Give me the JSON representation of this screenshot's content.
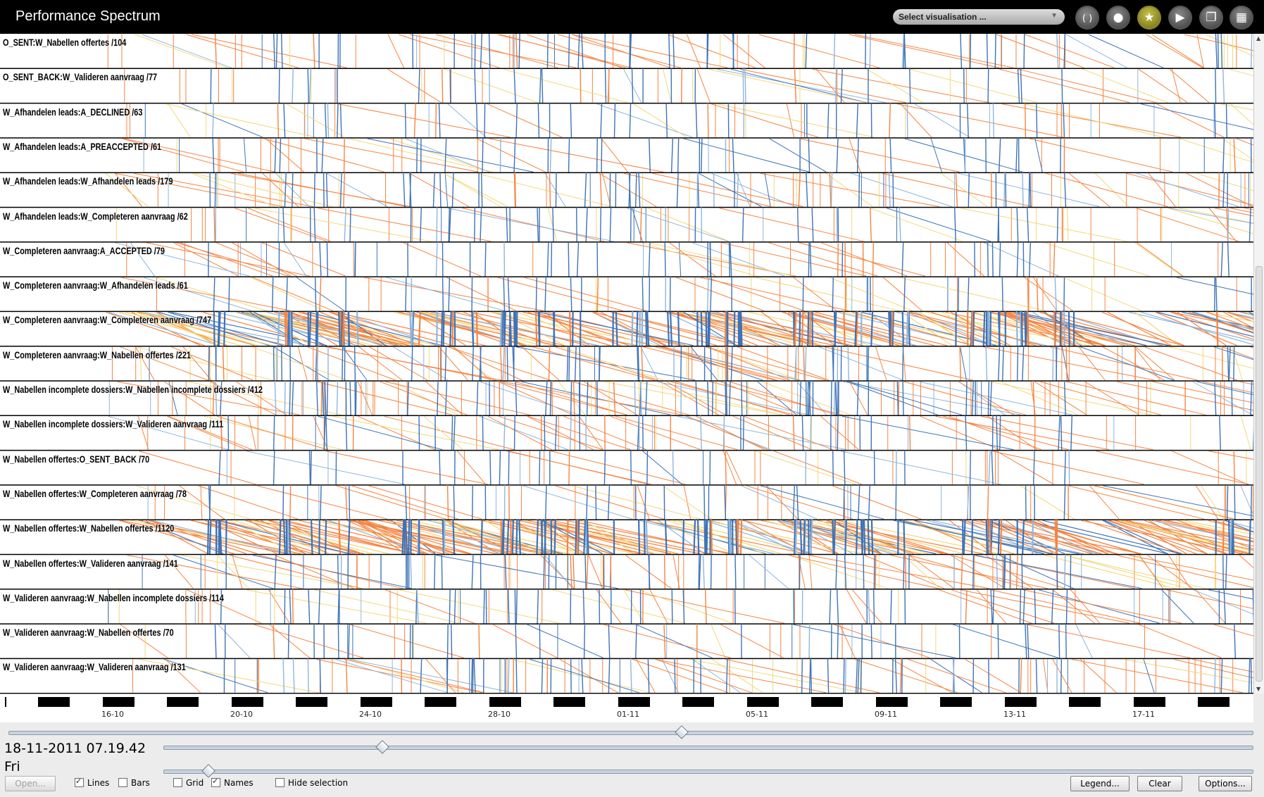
{
  "window": {
    "title": "Performance Spectrum"
  },
  "toolbar": {
    "select_visualisation": "Select visualisation ...",
    "buttons": [
      {
        "name": "refresh-icon",
        "glyph": "( )"
      },
      {
        "name": "drop-icon",
        "glyph": "●"
      },
      {
        "name": "star-icon",
        "glyph": "★"
      },
      {
        "name": "play-icon",
        "glyph": "▶"
      },
      {
        "name": "copy-icon",
        "glyph": "❐"
      },
      {
        "name": "grid-icon",
        "glyph": "▦"
      }
    ]
  },
  "segments": [
    {
      "label": "O_SENT:W_Nabellen offertes /104",
      "density": 0.25
    },
    {
      "label": "O_SENT_BACK:W_Valideren aanvraag /77",
      "density": 0.15
    },
    {
      "label": "W_Afhandelen leads:A_DECLINED /63",
      "density": 0.15
    },
    {
      "label": "W_Afhandelen leads:A_PREACCEPTED /61",
      "density": 0.15
    },
    {
      "label": "W_Afhandelen leads:W_Afhandelen leads /179",
      "density": 0.35
    },
    {
      "label": "W_Afhandelen leads:W_Completeren aanvraag /62",
      "density": 0.2
    },
    {
      "label": "W_Completeren aanvraag:A_ACCEPTED /79",
      "density": 0.2
    },
    {
      "label": "W_Completeren aanvraag:W_Afhandelen leads /61",
      "density": 0.15
    },
    {
      "label": "W_Completeren aanvraag:W_Completeren aanvraag /747",
      "density": 1.0
    },
    {
      "label": "W_Completeren aanvraag:W_Nabellen offertes /221",
      "density": 0.5
    },
    {
      "label": "W_Nabellen incomplete dossiers:W_Nabellen incomplete dossiers /412",
      "density": 0.6
    },
    {
      "label": "W_Nabellen incomplete dossiers:W_Valideren aanvraag /111",
      "density": 0.3
    },
    {
      "label": "W_Nabellen offertes:O_SENT_BACK /70",
      "density": 0.12
    },
    {
      "label": "W_Nabellen offertes:W_Completeren aanvraag /78",
      "density": 0.2
    },
    {
      "label": "W_Nabellen offertes:W_Nabellen offertes /1120",
      "density": 1.0
    },
    {
      "label": "W_Nabellen offertes:W_Valideren aanvraag /141",
      "density": 0.4
    },
    {
      "label": "W_Valideren aanvraag:W_Nabellen incomplete dossiers /114",
      "density": 0.25
    },
    {
      "label": "W_Valideren aanvraag:W_Nabellen offertes /70",
      "density": 0.12
    },
    {
      "label": "W_Valideren aanvraag:W_Valideren aanvraag /131",
      "density": 0.35
    }
  ],
  "colors": {
    "orange": "#f58442",
    "blue": "#3e73b8",
    "lightblue": "#8fb6dd",
    "yellow": "#f1d97a"
  },
  "timeline": {
    "dates": [
      "16-10",
      "20-10",
      "24-10",
      "28-10",
      "01-11",
      "05-11",
      "09-11",
      "13-11",
      "17-11"
    ]
  },
  "sliders": {
    "time_position": 0.54,
    "zoom": 0.2,
    "scale": 0.04
  },
  "status": {
    "datetime": "18-11-2011 07.19.42",
    "weekday": "Fri"
  },
  "controls": {
    "open": "Open...",
    "lines": "Lines",
    "lines_checked": true,
    "bars": "Bars",
    "bars_checked": false,
    "grid": "Grid",
    "grid_checked": false,
    "names": "Names",
    "names_checked": true,
    "hide_selection": "Hide selection",
    "hide_selection_checked": false,
    "legend": "Legend...",
    "clear": "Clear",
    "options": "Options..."
  }
}
